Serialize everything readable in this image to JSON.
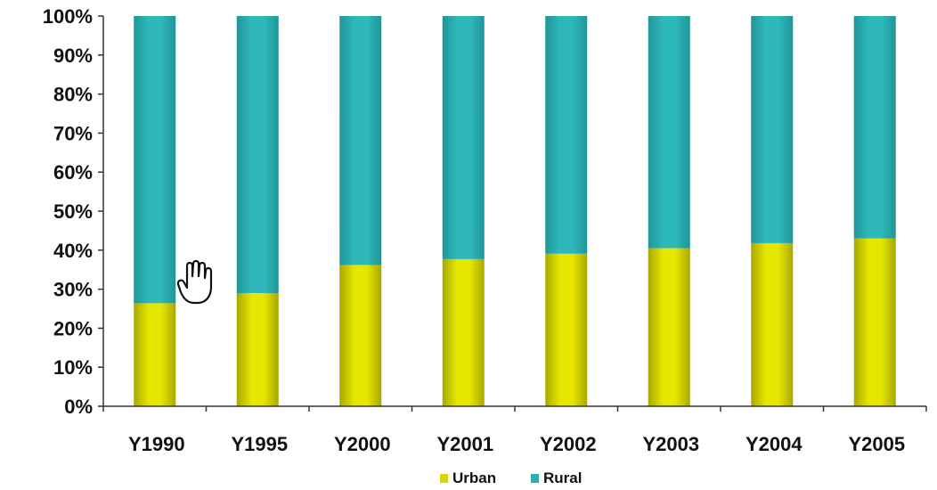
{
  "chart_data": {
    "type": "bar",
    "stacked": true,
    "percent_stacked": true,
    "categories": [
      "Y1990",
      "Y1995",
      "Y2000",
      "Y2001",
      "Y2002",
      "Y2003",
      "Y2004",
      "Y2005"
    ],
    "series": [
      {
        "name": "Urban",
        "color": "#d6d600",
        "values": [
          26.4,
          29.0,
          36.2,
          37.7,
          39.1,
          40.5,
          41.8,
          43.0
        ]
      },
      {
        "name": "Rural",
        "color": "#2aaeb0",
        "values": [
          73.6,
          71.0,
          63.8,
          62.3,
          60.9,
          59.5,
          58.2,
          57.0
        ]
      }
    ],
    "y_ticks": [
      "0%",
      "10%",
      "20%",
      "30%",
      "40%",
      "50%",
      "60%",
      "70%",
      "80%",
      "90%",
      "100%"
    ],
    "ylim": [
      0,
      100
    ],
    "grid": false,
    "legend_position": "bottom-center",
    "cursor_icon": "hand-pointer-icon"
  }
}
